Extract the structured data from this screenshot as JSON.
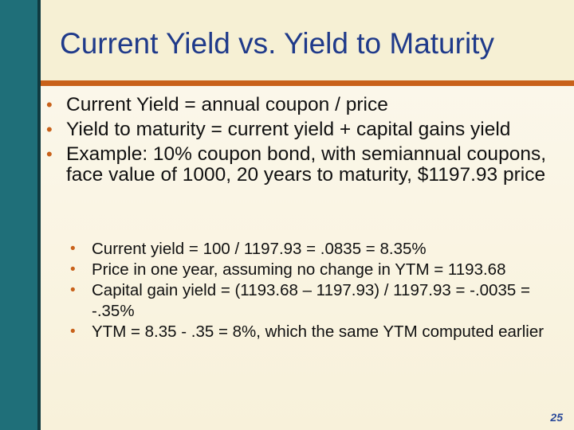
{
  "slide": {
    "title": "Current Yield vs. Yield to Maturity",
    "bullets": [
      "Current Yield = annual coupon / price",
      "Yield to maturity = current yield + capital gains yield",
      "Example: 10% coupon bond, with semiannual coupons, face value of 1000, 20 years to maturity, $1197.93 price"
    ],
    "sub_bullets": [
      "Current yield = 100 / 1197.93 = .0835 = 8.35%",
      "Price in one year, assuming no change in YTM = 1193.68",
      "Capital gain yield = (1193.68 – 1197.93) / 1197.93 = -.0035 = -.35%",
      "YTM = 8.35 - .35 = 8%, which the same YTM computed earlier"
    ],
    "page_number": "25"
  },
  "colors": {
    "title": "#1f3a8a",
    "accent": "#c8611a",
    "stripe": "#1f6f79",
    "background": "#fbf6e4"
  }
}
